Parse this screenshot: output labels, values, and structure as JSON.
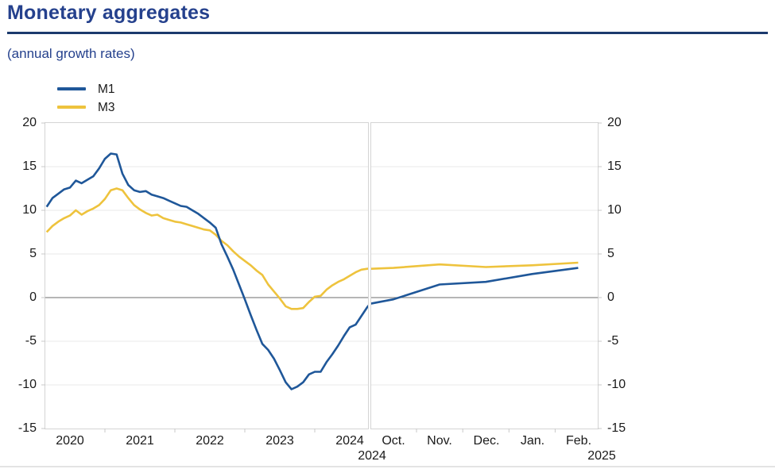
{
  "page": {
    "title": "Monetary aggregates",
    "subtitle": "(annual growth rates)"
  },
  "colors": {
    "title_text": "#25418d",
    "title_rule": "#1b3a6d",
    "m1_line": "#1f5799",
    "m3_line": "#eec33d",
    "axis_text": "#1a1a1a",
    "zero_line": "#8a8a8a",
    "gridline": "#e9e9e9",
    "panel_border": "#d4d4d4"
  },
  "chart_data": {
    "type": "line",
    "title": "Monetary aggregates",
    "subtitle": "(annual growth rates)",
    "legend_position": "top-left",
    "grid": "horizontal",
    "ylim": [
      -15,
      20
    ],
    "yticks": [
      20,
      15,
      10,
      5,
      0,
      -5,
      -10,
      -15
    ],
    "panels": [
      {
        "name": "history",
        "x_start": "2020-03",
        "frequency": "monthly",
        "x_tick_labels": [
          "2020",
          "2021",
          "2022",
          "2023",
          "2024"
        ],
        "series": [
          {
            "name": "M1",
            "color": "#1f5799",
            "values": [
              10.4,
              11.4,
              11.9,
              12.4,
              12.6,
              13.4,
              13.1,
              13.5,
              13.9,
              14.8,
              15.9,
              16.5,
              16.4,
              14.2,
              12.9,
              12.3,
              12.1,
              12.2,
              11.8,
              11.6,
              11.4,
              11.1,
              10.8,
              10.5,
              10.4,
              10.0,
              9.6,
              9.1,
              8.6,
              8.0,
              6.1,
              4.7,
              3.2,
              1.5,
              -0.2,
              -2.0,
              -3.7,
              -5.3,
              -6.0,
              -7.0,
              -8.3,
              -9.7,
              -10.5,
              -10.2,
              -9.7,
              -8.8,
              -8.5,
              -8.5,
              -7.4,
              -6.5,
              -5.5,
              -4.4,
              -3.4,
              -3.1,
              -2.1,
              -1.1,
              -0.3
            ]
          },
          {
            "name": "M3",
            "color": "#eec33d",
            "values": [
              7.5,
              8.2,
              8.7,
              9.1,
              9.4,
              10.0,
              9.5,
              9.9,
              10.2,
              10.6,
              11.3,
              12.3,
              12.5,
              12.3,
              11.4,
              10.6,
              10.1,
              9.7,
              9.4,
              9.5,
              9.1,
              8.9,
              8.7,
              8.6,
              8.4,
              8.2,
              8.0,
              7.8,
              7.7,
              7.2,
              6.5,
              6.0,
              5.3,
              4.7,
              4.2,
              3.7,
              3.1,
              2.6,
              1.5,
              0.7,
              -0.1,
              -1.0,
              -1.3,
              -1.3,
              -1.2,
              -0.5,
              0.1,
              0.2,
              0.9,
              1.4,
              1.8,
              2.1,
              2.5,
              2.9,
              3.2,
              3.3,
              3.4
            ]
          }
        ]
      },
      {
        "name": "recent",
        "x_start": "2024-09",
        "frequency": "monthly",
        "x_tick_labels": [
          "Oct.",
          "Nov.",
          "Dec.",
          "Jan.",
          "Feb."
        ],
        "x_year_labels": [
          "2024",
          "2025"
        ],
        "first_value_is_lead_in": true,
        "series": [
          {
            "name": "M1",
            "color": "#1f5799",
            "values": [
              -1.2,
              -0.2,
              1.5,
              1.8,
              2.7,
              3.4
            ]
          },
          {
            "name": "M3",
            "color": "#eec33d",
            "values": [
              3.2,
              3.4,
              3.8,
              3.5,
              3.7,
              4.0
            ]
          }
        ]
      }
    ]
  }
}
